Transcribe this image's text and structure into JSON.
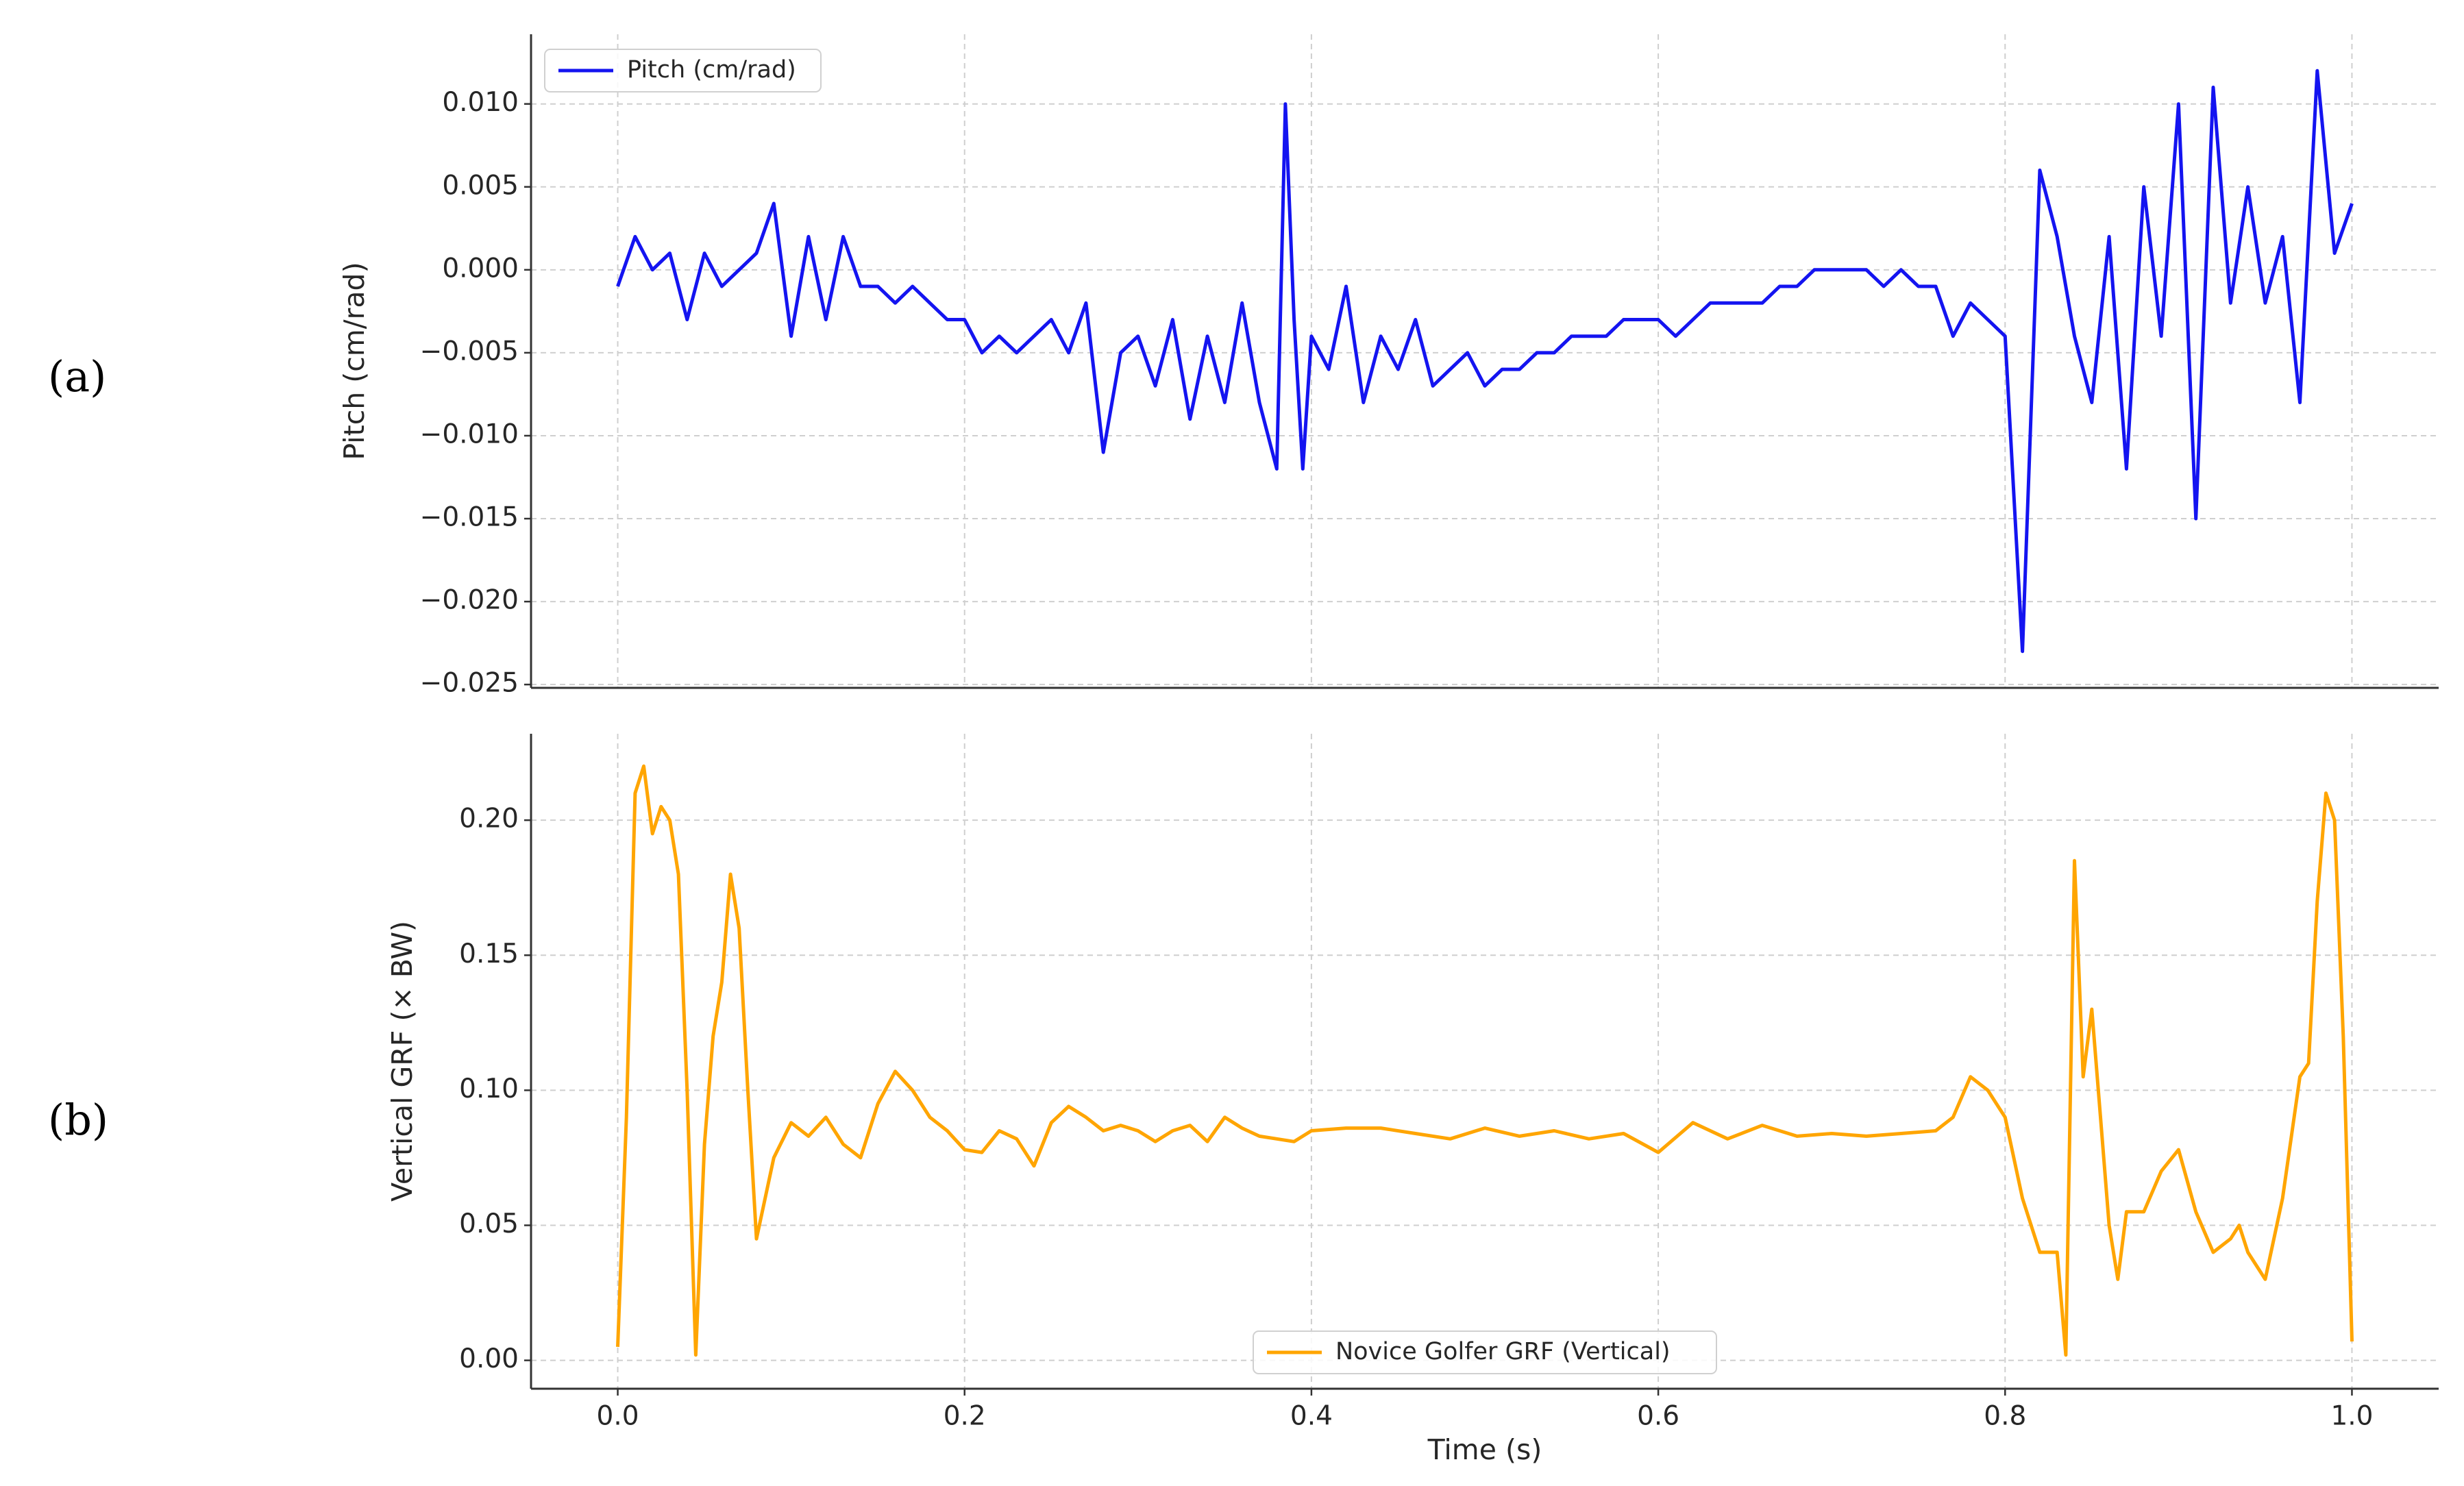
{
  "chart_data": [
    {
      "type": "line",
      "panel_label": "(a)",
      "ylabel": "Pitch (cm/rad)",
      "x": [
        0,
        0.01,
        0.02,
        0.03,
        0.04,
        0.05,
        0.06,
        0.07,
        0.08,
        0.09,
        0.1,
        0.11,
        0.12,
        0.13,
        0.14,
        0.15,
        0.16,
        0.17,
        0.18,
        0.19,
        0.2,
        0.21,
        0.22,
        0.23,
        0.24,
        0.25,
        0.26,
        0.27,
        0.28,
        0.29,
        0.3,
        0.31,
        0.32,
        0.33,
        0.34,
        0.35,
        0.36,
        0.37,
        0.38,
        0.385,
        0.39,
        0.395,
        0.4,
        0.41,
        0.42,
        0.43,
        0.44,
        0.45,
        0.46,
        0.47,
        0.48,
        0.49,
        0.5,
        0.51,
        0.52,
        0.53,
        0.54,
        0.55,
        0.56,
        0.57,
        0.58,
        0.59,
        0.6,
        0.61,
        0.62,
        0.63,
        0.64,
        0.65,
        0.66,
        0.67,
        0.68,
        0.69,
        0.7,
        0.71,
        0.72,
        0.73,
        0.74,
        0.75,
        0.76,
        0.77,
        0.78,
        0.79,
        0.8,
        0.81,
        0.82,
        0.83,
        0.84,
        0.85,
        0.86,
        0.87,
        0.88,
        0.89,
        0.9,
        0.91,
        0.92,
        0.93,
        0.94,
        0.95,
        0.96,
        0.97,
        0.98,
        0.99,
        1.0
      ],
      "series": [
        {
          "name": "Pitch (cm/rad)",
          "color": "#1414f0",
          "values": [
            -0.001,
            0.002,
            0.0,
            0.001,
            -0.003,
            0.001,
            -0.001,
            0.0,
            0.001,
            0.004,
            -0.004,
            0.002,
            -0.003,
            0.002,
            -0.001,
            -0.001,
            -0.002,
            -0.001,
            -0.002,
            -0.003,
            -0.003,
            -0.005,
            -0.004,
            -0.005,
            -0.004,
            -0.003,
            -0.005,
            -0.002,
            -0.011,
            -0.005,
            -0.004,
            -0.007,
            -0.003,
            -0.009,
            -0.004,
            -0.008,
            -0.002,
            -0.008,
            -0.012,
            0.01,
            -0.003,
            -0.012,
            -0.004,
            -0.006,
            -0.001,
            -0.008,
            -0.004,
            -0.006,
            -0.003,
            -0.007,
            -0.006,
            -0.005,
            -0.007,
            -0.006,
            -0.006,
            -0.005,
            -0.005,
            -0.004,
            -0.004,
            -0.004,
            -0.003,
            -0.003,
            -0.003,
            -0.004,
            -0.003,
            -0.002,
            -0.002,
            -0.002,
            -0.002,
            -0.001,
            -0.001,
            0.0,
            0.0,
            0.0,
            0.0,
            -0.001,
            0.0,
            -0.001,
            -0.001,
            -0.004,
            -0.002,
            -0.003,
            -0.004,
            -0.023,
            0.006,
            0.002,
            -0.004,
            -0.008,
            0.002,
            -0.012,
            0.005,
            -0.004,
            0.01,
            -0.015,
            0.011,
            -0.002,
            0.005,
            -0.002,
            0.002,
            -0.008,
            0.012,
            0.001,
            0.004
          ]
        }
      ],
      "ylim": [
        -0.0252,
        0.0142
      ],
      "yticks": [
        {
          "value": 0.01,
          "label": "0.010"
        },
        {
          "value": 0.005,
          "label": "0.005"
        },
        {
          "value": 0,
          "label": "0.000"
        },
        {
          "value": -0.005,
          "label": "−0.005"
        },
        {
          "value": -0.01,
          "label": "−0.010"
        },
        {
          "value": -0.015,
          "label": "−0.015"
        },
        {
          "value": -0.02,
          "label": "−0.020"
        },
        {
          "value": -0.025,
          "label": "−0.025"
        }
      ],
      "grid": true,
      "legend": "upper left"
    },
    {
      "type": "line",
      "panel_label": "(b)",
      "xlabel": "Time (s)",
      "ylabel": "Vertical GRF (× BW)",
      "x": [
        0,
        0.005,
        0.01,
        0.015,
        0.02,
        0.025,
        0.03,
        0.035,
        0.04,
        0.045,
        0.05,
        0.055,
        0.06,
        0.065,
        0.07,
        0.075,
        0.08,
        0.09,
        0.1,
        0.11,
        0.12,
        0.13,
        0.14,
        0.15,
        0.16,
        0.17,
        0.18,
        0.19,
        0.2,
        0.21,
        0.22,
        0.23,
        0.24,
        0.25,
        0.26,
        0.27,
        0.28,
        0.29,
        0.3,
        0.31,
        0.32,
        0.33,
        0.34,
        0.35,
        0.36,
        0.37,
        0.38,
        0.39,
        0.4,
        0.42,
        0.44,
        0.46,
        0.48,
        0.5,
        0.52,
        0.54,
        0.56,
        0.58,
        0.6,
        0.62,
        0.64,
        0.66,
        0.68,
        0.7,
        0.72,
        0.74,
        0.76,
        0.77,
        0.78,
        0.79,
        0.8,
        0.81,
        0.82,
        0.83,
        0.835,
        0.84,
        0.845,
        0.85,
        0.855,
        0.86,
        0.865,
        0.87,
        0.88,
        0.89,
        0.9,
        0.91,
        0.92,
        0.93,
        0.935,
        0.94,
        0.95,
        0.96,
        0.97,
        0.975,
        0.98,
        0.985,
        0.99,
        0.995,
        1.0
      ],
      "series": [
        {
          "name": "Novice Golfer GRF (Vertical)",
          "color": "#ffa500",
          "values": [
            0.005,
            0.09,
            0.21,
            0.22,
            0.195,
            0.205,
            0.2,
            0.18,
            0.1,
            0.002,
            0.08,
            0.12,
            0.14,
            0.18,
            0.16,
            0.1,
            0.045,
            0.075,
            0.088,
            0.083,
            0.09,
            0.08,
            0.075,
            0.095,
            0.107,
            0.1,
            0.09,
            0.085,
            0.078,
            0.077,
            0.085,
            0.082,
            0.072,
            0.088,
            0.094,
            0.09,
            0.085,
            0.087,
            0.085,
            0.081,
            0.085,
            0.087,
            0.081,
            0.09,
            0.086,
            0.083,
            0.082,
            0.081,
            0.085,
            0.086,
            0.086,
            0.084,
            0.082,
            0.086,
            0.083,
            0.085,
            0.082,
            0.084,
            0.077,
            0.088,
            0.082,
            0.087,
            0.083,
            0.084,
            0.083,
            0.084,
            0.085,
            0.09,
            0.105,
            0.1,
            0.09,
            0.06,
            0.04,
            0.04,
            0.002,
            0.185,
            0.105,
            0.13,
            0.09,
            0.05,
            0.03,
            0.055,
            0.055,
            0.07,
            0.078,
            0.055,
            0.04,
            0.045,
            0.05,
            0.04,
            0.03,
            0.06,
            0.105,
            0.11,
            0.17,
            0.21,
            0.2,
            0.12,
            0.007
          ]
        }
      ],
      "xlim": [
        -0.05,
        1.05
      ],
      "xticks": [
        {
          "value": 0,
          "label": "0.0"
        },
        {
          "value": 0.2,
          "label": "0.2"
        },
        {
          "value": 0.4,
          "label": "0.4"
        },
        {
          "value": 0.6,
          "label": "0.6"
        },
        {
          "value": 0.8,
          "label": "0.8"
        },
        {
          "value": 1.0,
          "label": "1.0"
        }
      ],
      "ylim": [
        -0.0105,
        0.232
      ],
      "yticks": [
        {
          "value": 0.2,
          "label": "0.20"
        },
        {
          "value": 0.15,
          "label": "0.15"
        },
        {
          "value": 0.1,
          "label": "0.10"
        },
        {
          "value": 0.05,
          "label": "0.05"
        },
        {
          "value": 0,
          "label": "0.00"
        }
      ],
      "grid": true,
      "legend": "lower center"
    }
  ]
}
